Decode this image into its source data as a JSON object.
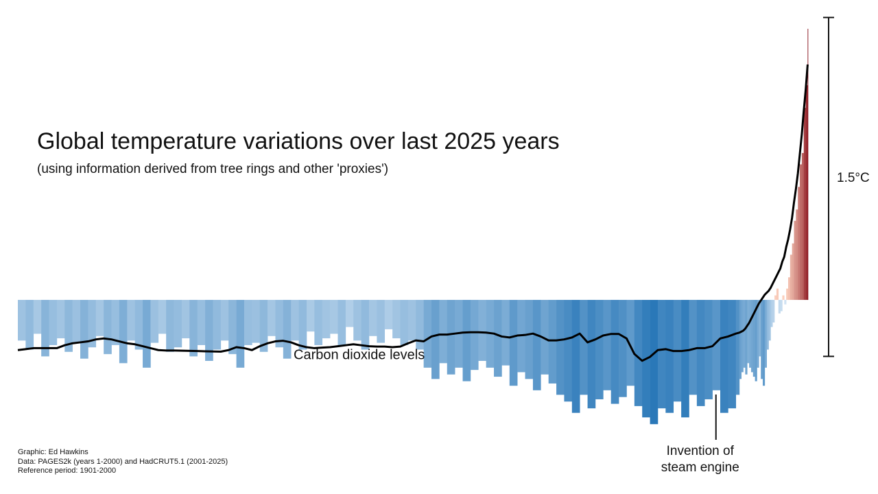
{
  "chart_data": {
    "type": "bar",
    "title": "Global temperature variations over last 2025 years",
    "subtitle": "(using information derived from tree rings and other 'proxies')",
    "x": [
      1,
      21,
      41,
      61,
      81,
      101,
      121,
      141,
      161,
      181,
      201,
      221,
      241,
      261,
      281,
      301,
      321,
      341,
      361,
      381,
      401,
      421,
      441,
      461,
      481,
      501,
      521,
      541,
      561,
      581,
      601,
      621,
      641,
      661,
      681,
      701,
      721,
      741,
      761,
      781,
      801,
      821,
      841,
      861,
      881,
      901,
      921,
      941,
      961,
      981,
      1001,
      1021,
      1041,
      1061,
      1081,
      1101,
      1121,
      1141,
      1161,
      1181,
      1201,
      1221,
      1241,
      1261,
      1281,
      1301,
      1321,
      1341,
      1361,
      1381,
      1401,
      1421,
      1441,
      1461,
      1481,
      1501,
      1521,
      1541,
      1561,
      1581,
      1601,
      1621,
      1641,
      1661,
      1681,
      1701,
      1721,
      1741,
      1761,
      1781,
      1801,
      1821,
      1841,
      1850,
      1855,
      1860,
      1865,
      1870,
      1875,
      1880,
      1885,
      1890,
      1895,
      1900,
      1905,
      1910,
      1915,
      1920,
      1925,
      1930,
      1935,
      1940,
      1945,
      1950,
      1955,
      1960,
      1965,
      1970,
      1975,
      1980,
      1985,
      1990,
      1995,
      2000,
      2005,
      2010,
      2015,
      2020,
      2025
    ],
    "xlim": [
      1,
      2026
    ],
    "ylim": [
      -0.85,
      1.3
    ],
    "y2lim": [
      205,
      455
    ],
    "colormap": {
      "cool": [
        "#d6e6f5",
        "#2a78b8"
      ],
      "warm": [
        "#fdd3c0",
        "#7f000d"
      ],
      "cool_span": 0.55,
      "warm_span": 1.2
    },
    "series": [
      {
        "type": "bar",
        "values": [
          -0.18,
          -0.22,
          -0.15,
          -0.25,
          -0.2,
          -0.17,
          -0.23,
          -0.19,
          -0.26,
          -0.21,
          -0.16,
          -0.24,
          -0.2,
          -0.28,
          -0.18,
          -0.22,
          -0.3,
          -0.19,
          -0.15,
          -0.23,
          -0.21,
          -0.17,
          -0.25,
          -0.2,
          -0.27,
          -0.22,
          -0.18,
          -0.24,
          -0.3,
          -0.2,
          -0.19,
          -0.23,
          -0.16,
          -0.21,
          -0.26,
          -0.18,
          -0.22,
          -0.14,
          -0.2,
          -0.17,
          -0.15,
          -0.2,
          -0.12,
          -0.18,
          -0.22,
          -0.16,
          -0.19,
          -0.13,
          -0.17,
          -0.2,
          -0.18,
          -0.22,
          -0.3,
          -0.35,
          -0.28,
          -0.33,
          -0.3,
          -0.36,
          -0.31,
          -0.27,
          -0.3,
          -0.34,
          -0.29,
          -0.38,
          -0.32,
          -0.35,
          -0.4,
          -0.33,
          -0.37,
          -0.42,
          -0.45,
          -0.5,
          -0.42,
          -0.48,
          -0.44,
          -0.4,
          -0.46,
          -0.43,
          -0.38,
          -0.47,
          -0.52,
          -0.55,
          -0.48,
          -0.5,
          -0.45,
          -0.52,
          -0.42,
          -0.47,
          -0.44,
          -0.4,
          -0.5,
          -0.48,
          -0.42,
          -0.35,
          -0.32,
          -0.3,
          -0.33,
          -0.28,
          -0.3,
          -0.32,
          -0.34,
          -0.36,
          -0.3,
          -0.25,
          -0.35,
          -0.38,
          -0.3,
          -0.22,
          -0.18,
          -0.12,
          -0.1,
          0.02,
          0.05,
          -0.06,
          -0.05,
          0.02,
          -0.02,
          0.05,
          0.1,
          0.2,
          0.25,
          0.35,
          0.4,
          0.5,
          0.6,
          0.65,
          0.85,
          0.95,
          1.2
        ]
      },
      {
        "type": "line",
        "name": "Carbon dioxide levels",
        "axis": "y2",
        "color": "#000000",
        "values": [
          278,
          278.5,
          279,
          279,
          279,
          279,
          280.5,
          281.5,
          282,
          282.5,
          283.5,
          284,
          283.5,
          282.5,
          281.5,
          281,
          280,
          279,
          278,
          277.8,
          277.8,
          277.7,
          277.6,
          277.5,
          277.4,
          277.3,
          277.2,
          278,
          279.5,
          279,
          278,
          280,
          281.5,
          282.5,
          282.8,
          282,
          280.5,
          279.5,
          279,
          279.3,
          279.5,
          280,
          280.5,
          281,
          280.5,
          280,
          279.8,
          279.8,
          279.5,
          279.8,
          281.5,
          283,
          282.5,
          285,
          286,
          286,
          286.5,
          287,
          287.2,
          287.2,
          287,
          286.5,
          285,
          284.5,
          285.5,
          285.8,
          286.5,
          285,
          283,
          283,
          283.5,
          284.5,
          286.5,
          282,
          283.5,
          285.5,
          286.3,
          286.3,
          284,
          276,
          272.5,
          274.5,
          278,
          278.5,
          277.5,
          277.5,
          278,
          279,
          279,
          280,
          284,
          285,
          286.5,
          287,
          287.5,
          288,
          289,
          290.5,
          292,
          294,
          296,
          298,
          300,
          302,
          303.5,
          305,
          306.5,
          307.5,
          308.5,
          310,
          312,
          314,
          316,
          318,
          320,
          323.5,
          326,
          331,
          335,
          340,
          346,
          354,
          361,
          369,
          379,
          389,
          401,
          412,
          425
        ]
      }
    ],
    "scale_bar": {
      "from": -0.25,
      "to": 1.25,
      "label": "1.5°C"
    },
    "annotation": {
      "x": 1790,
      "lines": [
        "Invention of",
        "steam engine"
      ]
    },
    "credits": [
      "Graphic: Ed Hawkins",
      "Data: PAGES2k (years 1-2000) and HadCRUT5.1 (2001-2025)",
      "Reference period: 1901-2000"
    ]
  }
}
